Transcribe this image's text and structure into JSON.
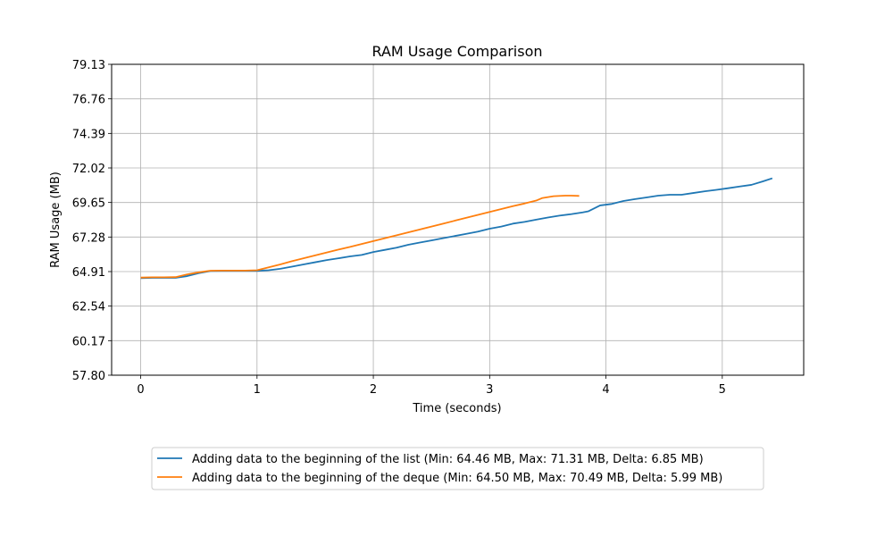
{
  "chart_data": {
    "type": "line",
    "title": "RAM Usage Comparison",
    "xlabel": "Time (seconds)",
    "ylabel": "RAM Usage (MB)",
    "xlim": [
      -0.25,
      5.7
    ],
    "ylim": [
      57.8,
      79.13
    ],
    "xticks": [
      0,
      1,
      2,
      3,
      4,
      5
    ],
    "xtick_labels": [
      "0",
      "1",
      "2",
      "3",
      "4",
      "5"
    ],
    "yticks": [
      57.8,
      60.17,
      62.54,
      64.91,
      67.28,
      69.65,
      72.02,
      74.39,
      76.76,
      79.13
    ],
    "ytick_labels": [
      "57.80",
      "60.17",
      "62.54",
      "64.91",
      "67.28",
      "69.65",
      "72.02",
      "74.39",
      "76.76",
      "79.13"
    ],
    "grid": true,
    "legend_placement": "bottom-center",
    "series": [
      {
        "name": "Adding data to the beginning of the list (Min: 64.46 MB, Max: 71.31 MB, Delta: 6.85 MB)",
        "color": "#1f77b4",
        "x": [
          0,
          0.1,
          0.2,
          0.3,
          0.4,
          0.5,
          0.6,
          0.7,
          0.8,
          0.9,
          1.0,
          1.1,
          1.2,
          1.3,
          1.4,
          1.5,
          1.6,
          1.7,
          1.8,
          1.9,
          2.0,
          2.1,
          2.2,
          2.3,
          2.4,
          2.5,
          2.6,
          2.7,
          2.8,
          2.9,
          3.0,
          3.1,
          3.2,
          3.3,
          3.4,
          3.5,
          3.6,
          3.7,
          3.8,
          3.85,
          3.95,
          4.05,
          4.15,
          4.25,
          4.35,
          4.45,
          4.55,
          4.65,
          4.75,
          4.85,
          4.95,
          5.05,
          5.15,
          5.25,
          5.35,
          5.43
        ],
        "y": [
          64.46,
          64.48,
          64.48,
          64.48,
          64.6,
          64.8,
          64.95,
          64.96,
          64.96,
          64.96,
          64.96,
          65.0,
          65.1,
          65.25,
          65.4,
          65.55,
          65.7,
          65.82,
          65.95,
          66.05,
          66.25,
          66.4,
          66.55,
          66.75,
          66.9,
          67.05,
          67.2,
          67.35,
          67.5,
          67.65,
          67.85,
          68.0,
          68.2,
          68.32,
          68.47,
          68.62,
          68.75,
          68.85,
          68.97,
          69.05,
          69.45,
          69.55,
          69.75,
          69.88,
          70.0,
          70.12,
          70.18,
          70.18,
          70.3,
          70.42,
          70.52,
          70.63,
          70.75,
          70.86,
          71.1,
          71.31
        ]
      },
      {
        "name": "Adding data to the beginning of the deque (Min: 64.50 MB, Max: 70.49 MB, Delta: 5.99 MB)",
        "color": "#ff7f0e",
        "x": [
          0,
          0.1,
          0.2,
          0.3,
          0.4,
          0.5,
          0.6,
          0.7,
          0.8,
          0.9,
          1.0,
          1.1,
          1.2,
          1.3,
          1.4,
          1.5,
          1.6,
          1.7,
          1.8,
          1.9,
          2.0,
          2.1,
          2.2,
          2.3,
          2.4,
          2.5,
          2.6,
          2.7,
          2.8,
          2.9,
          3.0,
          3.1,
          3.2,
          3.3,
          3.4,
          3.45,
          3.55,
          3.65,
          3.7,
          3.77
        ],
        "y": [
          64.5,
          64.52,
          64.52,
          64.53,
          64.72,
          64.86,
          64.97,
          64.98,
          64.98,
          64.98,
          65.0,
          65.2,
          65.4,
          65.62,
          65.82,
          66.02,
          66.22,
          66.42,
          66.6,
          66.8,
          67.0,
          67.2,
          67.4,
          67.6,
          67.8,
          68.0,
          68.2,
          68.4,
          68.6,
          68.8,
          69.0,
          69.2,
          69.4,
          69.58,
          69.78,
          69.95,
          70.08,
          70.12,
          70.12,
          70.1
        ]
      }
    ]
  }
}
